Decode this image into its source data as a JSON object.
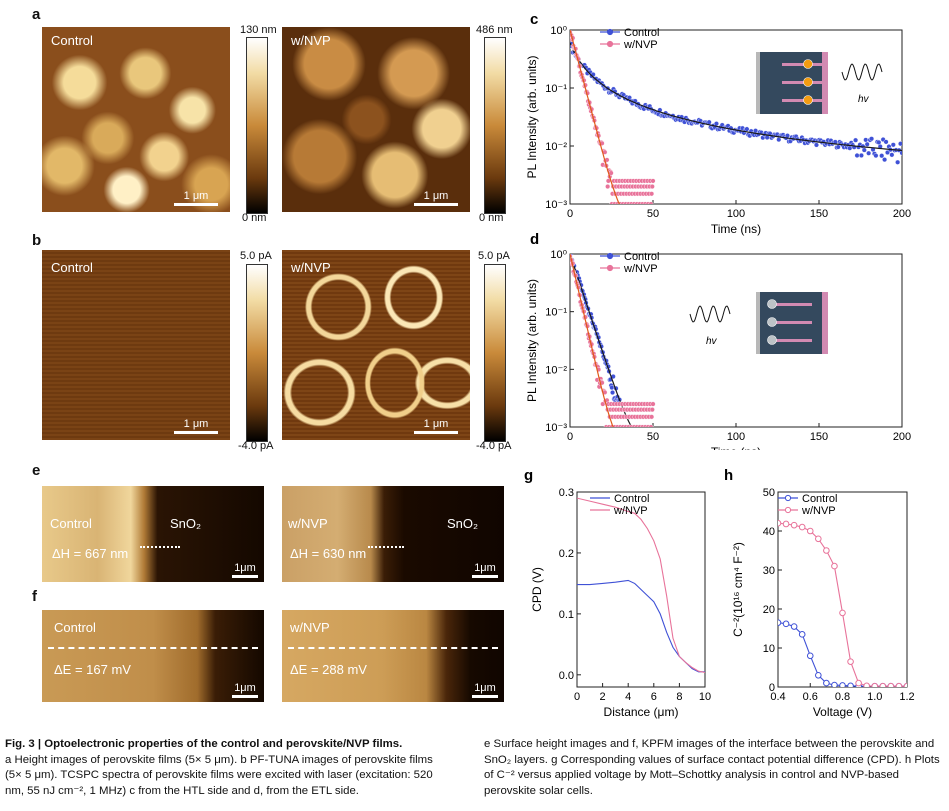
{
  "panels": {
    "a": {
      "letter": "a",
      "left_label": "Control",
      "right_label": "w/NVP",
      "left_cbar_top": "130 nm",
      "left_cbar_bottom": "0 nm",
      "right_cbar_top": "486 nm",
      "right_cbar_bottom": "0 nm",
      "scale": "1 μm"
    },
    "b": {
      "letter": "b",
      "left_label": "Control",
      "right_label": "w/NVP",
      "left_cbar_top": "5.0 pA",
      "left_cbar_bottom": "-4.0 pA",
      "right_cbar_top": "5.0 pA",
      "right_cbar_bottom": "-4.0 pA",
      "scale": "1 μm"
    },
    "e": {
      "letter": "e",
      "left_label": "Control",
      "left_sub": "SnO₂",
      "left_dh": "ΔH = 667 nm",
      "right_label": "w/NVP",
      "right_sub": "SnO₂",
      "right_dh": "ΔH = 630 nm",
      "scale": "1μm"
    },
    "f": {
      "letter": "f",
      "left_label": "Control",
      "left_de": "ΔE = 167 mV",
      "right_label": "w/NVP",
      "right_de": "ΔE = 288 mV",
      "scale": "1μm"
    }
  },
  "chart_data": [
    {
      "id": "c",
      "letter": "c",
      "type": "scatter",
      "xlabel": "Time (ns)",
      "ylabel": "PL Intensity (arb. units)",
      "xlim": [
        0,
        200
      ],
      "ylim": [
        0.001,
        1
      ],
      "yscale": "log",
      "x_ticks": [
        "0",
        "50",
        "100",
        "150",
        "200"
      ],
      "y_ticks": [
        "10⁻³",
        "10⁻²",
        "10⁻¹",
        "10⁰"
      ],
      "inset_label": "hv",
      "series": [
        {
          "name": "Control",
          "color": "#3f51d6",
          "tau_ns": 60,
          "amp": 0.6,
          "fit_color": "#1a1a1a"
        },
        {
          "name": "w/NVP",
          "color": "#e8739a",
          "tau_ns": 4,
          "amp": 1.0,
          "fit_color": "#e05a1a"
        }
      ]
    },
    {
      "id": "d",
      "letter": "d",
      "type": "scatter",
      "xlabel": "Time (ns)",
      "ylabel": "PL Intensity (arb. units)",
      "xlim": [
        0,
        200
      ],
      "ylim": [
        0.001,
        1
      ],
      "yscale": "log",
      "x_ticks": [
        "0",
        "50",
        "100",
        "150",
        "200"
      ],
      "y_ticks": [
        "10⁻³",
        "10⁻²",
        "10⁻¹",
        "10⁰"
      ],
      "inset_label": "hv",
      "series": [
        {
          "name": "Control",
          "color": "#3f51d6",
          "tau_ns": 5,
          "amp": 1.0,
          "fit_color": "#1a1a1a"
        },
        {
          "name": "w/NVP",
          "color": "#e8739a",
          "tau_ns": 3.5,
          "amp": 1.0,
          "fit_color": "#e05a1a"
        }
      ]
    },
    {
      "id": "g",
      "letter": "g",
      "type": "line",
      "xlabel": "Distance (μm)",
      "ylabel": "CPD (V)",
      "xlim": [
        0,
        10
      ],
      "ylim": [
        -0.02,
        0.3
      ],
      "x_ticks": [
        "0",
        "2",
        "4",
        "6",
        "8",
        "10"
      ],
      "y_ticks": [
        "0.0",
        "0.1",
        "0.2",
        "0.3"
      ],
      "series": [
        {
          "name": "Control",
          "color": "#3f51d6",
          "x": [
            0,
            1,
            2,
            3,
            4,
            4.5,
            5,
            5.5,
            6,
            6.5,
            7,
            7.5,
            8,
            8.5,
            9,
            9.5,
            10
          ],
          "y": [
            0.148,
            0.148,
            0.15,
            0.152,
            0.155,
            0.15,
            0.14,
            0.13,
            0.12,
            0.1,
            0.07,
            0.045,
            0.03,
            0.02,
            0.01,
            0.005,
            0.005
          ]
        },
        {
          "name": "w/NVP",
          "color": "#e8739a",
          "x": [
            0,
            1,
            2,
            3,
            4,
            4.5,
            5,
            5.5,
            6,
            6.5,
            7,
            7.5,
            8,
            8.5,
            9,
            9.5,
            10
          ],
          "y": [
            0.29,
            0.285,
            0.28,
            0.275,
            0.268,
            0.265,
            0.255,
            0.24,
            0.22,
            0.19,
            0.13,
            0.06,
            0.03,
            0.02,
            0.012,
            0.006,
            0.004
          ]
        }
      ]
    },
    {
      "id": "h",
      "letter": "h",
      "type": "line",
      "xlabel": "Voltage (V)",
      "ylabel": "C⁻²(10¹⁶ cm⁴ F⁻²)",
      "xlim": [
        0.4,
        1.2
      ],
      "ylim": [
        0,
        50
      ],
      "x_ticks": [
        "0.4",
        "0.6",
        "0.8",
        "1.0",
        "1.2"
      ],
      "y_ticks": [
        "0",
        "10",
        "20",
        "30",
        "40",
        "50"
      ],
      "series": [
        {
          "name": "Control",
          "color": "#3f51d6",
          "x": [
            0.4,
            0.45,
            0.5,
            0.55,
            0.6,
            0.65,
            0.7,
            0.75,
            0.8,
            0.85,
            0.9,
            0.95,
            1.0,
            1.05,
            1.1,
            1.15,
            1.2
          ],
          "y": [
            16.5,
            16.2,
            15.5,
            13.5,
            8,
            3,
            1,
            0.5,
            0.4,
            0.3,
            0.2,
            0.2,
            0.2,
            0.2,
            0.2,
            0.2,
            0.2
          ]
        },
        {
          "name": "w/NVP",
          "color": "#e8739a",
          "x": [
            0.4,
            0.45,
            0.5,
            0.55,
            0.6,
            0.65,
            0.7,
            0.75,
            0.8,
            0.85,
            0.9,
            0.95,
            1.0,
            1.05,
            1.1,
            1.15,
            1.2
          ],
          "y": [
            42,
            41.8,
            41.5,
            41,
            40,
            38,
            35,
            31,
            19,
            6.5,
            1,
            0.3,
            0.2,
            0.2,
            0.2,
            0.2,
            0.2
          ]
        }
      ]
    }
  ],
  "caption": {
    "title": "Fig. 3 | Optoelectronic properties of the control and perovskite/NVP films.",
    "left_text": "a Height images of perovskite films (5× 5 μm). b PF-TUNA images of perovskite films (5× 5 μm). TCSPC spectra of perovskite films were excited with laser (excitation: 520 nm, 55 nJ cm⁻², 1 MHz) c from the HTL side and d, from the ETL side.",
    "right_text": "e Surface height images and f, KPFM images of the interface between the perovskite and SnO₂ layers. g Corresponding values of surface contact potential difference (CPD). h Plots of C⁻² versus applied voltage by Mott–Schottky analysis in control and NVP-based perovskite solar cells."
  }
}
